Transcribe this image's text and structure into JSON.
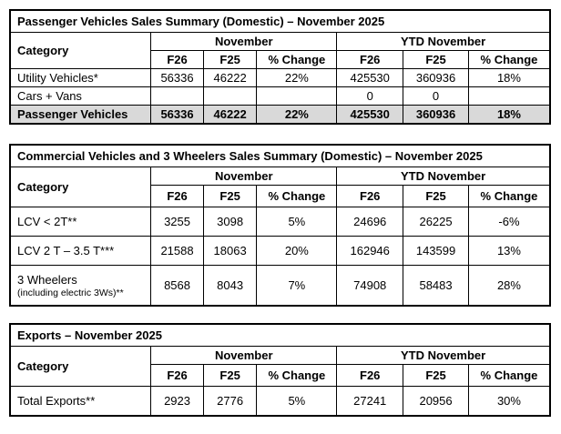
{
  "page": {
    "background_color": "#ffffff",
    "text_color": "#000000",
    "border_color": "#000000",
    "highlight_row_bg": "#d9d9d9"
  },
  "tables": [
    {
      "id": "passenger-vehicles",
      "title": "Passenger Vehicles Sales Summary (Domestic) – November 2025",
      "category_header": "Category",
      "group_headers": [
        "November",
        "YTD November"
      ],
      "sub_headers": [
        "F26",
        "F25",
        "% Change",
        "F26",
        "F25",
        "% Change"
      ],
      "rows": [
        {
          "category": "Utility Vehicles*",
          "cells": [
            "56336",
            "46222",
            "22%",
            "425530",
            "360936",
            "18%"
          ],
          "highlight": false
        },
        {
          "category": "Cars + Vans",
          "cells": [
            "",
            "",
            "",
            "0",
            "0",
            ""
          ],
          "highlight": false
        },
        {
          "category": "Passenger Vehicles",
          "cells": [
            "56336",
            "46222",
            "22%",
            "425530",
            "360936",
            "18%"
          ],
          "highlight": true
        }
      ]
    },
    {
      "id": "commercial-vehicles-3-wheelers",
      "title": "Commercial Vehicles and 3 Wheelers Sales Summary (Domestic) – November 2025",
      "category_header": "Category",
      "group_headers": [
        "November",
        "YTD November"
      ],
      "sub_headers": [
        "F26",
        "F25",
        "% Change",
        "F26",
        "F25",
        "% Change"
      ],
      "rows": [
        {
          "category": "LCV < 2T**",
          "cells": [
            "3255",
            "3098",
            "5%",
            "24696",
            "26225",
            "-6%"
          ],
          "highlight": false
        },
        {
          "category": "LCV 2 T – 3.5 T***",
          "cells": [
            "21588",
            "18063",
            "20%",
            "162946",
            "143599",
            "13%"
          ],
          "highlight": false
        },
        {
          "category": "3 Wheelers",
          "category_sub": "(including electric 3Ws)**",
          "cells": [
            "8568",
            "8043",
            "7%",
            "74908",
            "58483",
            "28%"
          ],
          "highlight": false
        }
      ]
    },
    {
      "id": "exports",
      "title": "Exports – November 2025",
      "category_header": "Category",
      "group_headers": [
        "November",
        "YTD November"
      ],
      "sub_headers": [
        "F26",
        "F25",
        "% Change",
        "F26",
        "F25",
        "% Change"
      ],
      "rows": [
        {
          "category": "Total Exports**",
          "cells": [
            "2923",
            "2776",
            "5%",
            "27241",
            "20956",
            "30%"
          ],
          "highlight": false
        }
      ]
    }
  ]
}
